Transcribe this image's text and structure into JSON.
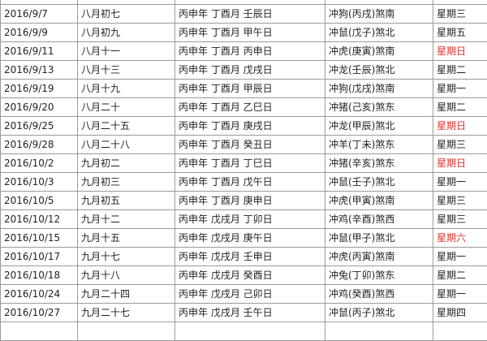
{
  "table": {
    "rows": [
      {
        "date": "2016/9/7",
        "lunar": "八月初七",
        "ganzhi": "丙申年 丁酉月 壬辰日",
        "clash": "冲狗(丙戌)煞南",
        "weekday": "星期三",
        "weekday_color": "#222222"
      },
      {
        "date": "2016/9/9",
        "lunar": "八月初九",
        "ganzhi": "丙申年 丁酉月 甲午日",
        "clash": "冲鼠(戊子)煞北",
        "weekday": "星期五",
        "weekday_color": "#222222"
      },
      {
        "date": "2016/9/11",
        "lunar": "八月十一",
        "ganzhi": "丙申年 丁酉月 丙申日",
        "clash": "冲虎(庚寅)煞南",
        "weekday": "星期日",
        "weekday_color": "#e0302a"
      },
      {
        "date": "2016/9/13",
        "lunar": "八月十三",
        "ganzhi": "丙申年 丁酉月 戊戌日",
        "clash": "冲龙(壬辰)煞北",
        "weekday": "星期二",
        "weekday_color": "#222222"
      },
      {
        "date": "2016/9/19",
        "lunar": "八月十九",
        "ganzhi": "丙申年 丁酉月 甲辰日",
        "clash": "冲狗(戊戌)煞南",
        "weekday": "星期一",
        "weekday_color": "#222222"
      },
      {
        "date": "2016/9/20",
        "lunar": "八月二十",
        "ganzhi": "丙申年 丁酉月 乙巳日",
        "clash": "冲猪(己亥)煞东",
        "weekday": "星期二",
        "weekday_color": "#222222"
      },
      {
        "date": "2016/9/25",
        "lunar": "八月二十五",
        "ganzhi": "丙申年 丁酉月 庚戌日",
        "clash": "冲龙(甲辰)煞北",
        "weekday": "星期日",
        "weekday_color": "#e0302a"
      },
      {
        "date": "2016/9/28",
        "lunar": "八月二十八",
        "ganzhi": "丙申年 丁酉月 癸丑日",
        "clash": "冲羊(丁未)煞东",
        "weekday": "星期三",
        "weekday_color": "#222222"
      },
      {
        "date": "2016/10/2",
        "lunar": "九月初二",
        "ganzhi": "丙申年 丁酉月 丁巳日",
        "clash": "冲猪(辛亥)煞东",
        "weekday": "星期日",
        "weekday_color": "#e0302a"
      },
      {
        "date": "2016/10/3",
        "lunar": "九月初三",
        "ganzhi": "丙申年 丁酉月 戊午日",
        "clash": "冲鼠(壬子)煞北",
        "weekday": "星期一",
        "weekday_color": "#222222"
      },
      {
        "date": "2016/10/5",
        "lunar": "九月初五",
        "ganzhi": "丙申年 丁酉月 庚申日",
        "clash": "冲虎(甲寅)煞南",
        "weekday": "星期三",
        "weekday_color": "#222222"
      },
      {
        "date": "2016/10/12",
        "lunar": "九月十二",
        "ganzhi": "丙申年 戊戌月 丁卯日",
        "clash": "冲鸡(辛酉)煞西",
        "weekday": "星期三",
        "weekday_color": "#222222"
      },
      {
        "date": "2016/10/15",
        "lunar": "九月十五",
        "ganzhi": "丙申年 戊戌月 庚午日",
        "clash": "冲鼠(甲子)煞北",
        "weekday": "星期六",
        "weekday_color": "#e0302a"
      },
      {
        "date": "2016/10/17",
        "lunar": "九月十七",
        "ganzhi": "丙申年 戊戌月 壬申日",
        "clash": "冲虎(丙寅)煞南",
        "weekday": "星期一",
        "weekday_color": "#222222"
      },
      {
        "date": "2016/10/18",
        "lunar": "九月十八",
        "ganzhi": "丙申年 戊戌月 癸酉日",
        "clash": "冲兔(丁卯)煞东",
        "weekday": "星期二",
        "weekday_color": "#222222"
      },
      {
        "date": "2016/10/24",
        "lunar": "九月二十四",
        "ganzhi": "丙申年 戊戌月 己卯日",
        "clash": "冲鸡(癸酉)煞西",
        "weekday": "星期一",
        "weekday_color": "#222222"
      },
      {
        "date": "2016/10/27",
        "lunar": "九月二十七",
        "ganzhi": "丙申年 戊戌月 壬午日",
        "clash": "冲鼠(丙子)煞北",
        "weekday": "星期四",
        "weekday_color": "#222222"
      }
    ]
  }
}
